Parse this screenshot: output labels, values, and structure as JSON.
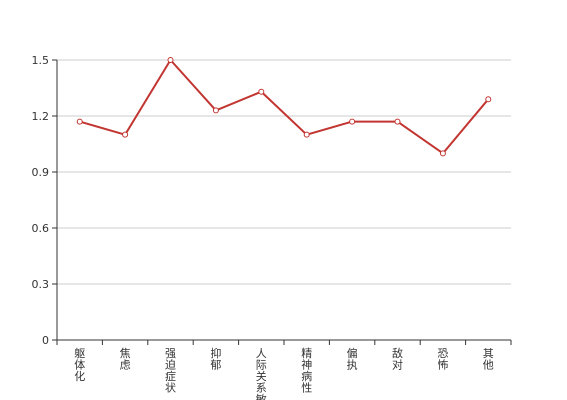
{
  "chart_data": {
    "type": "line",
    "categories": [
      "躯体化",
      "焦虑",
      "强迫症状",
      "抑郁",
      "人际关系敏感",
      "精神病性",
      "偏执",
      "敌对",
      "恐怖",
      "其他"
    ],
    "series": [
      {
        "values": [
          1.17,
          1.1,
          1.5,
          1.23,
          1.33,
          1.1,
          1.17,
          1.17,
          1.0,
          1.29
        ]
      }
    ],
    "ylim": [
      0,
      1.5
    ],
    "yticks": [
      "0",
      "0.3",
      "0.6",
      "0.9",
      "1.2",
      "1.5"
    ],
    "grid": true,
    "colors": {
      "line": "#c23531",
      "grid": "#cccccc",
      "axis": "#333333",
      "point_fill": "#ffffff"
    }
  }
}
